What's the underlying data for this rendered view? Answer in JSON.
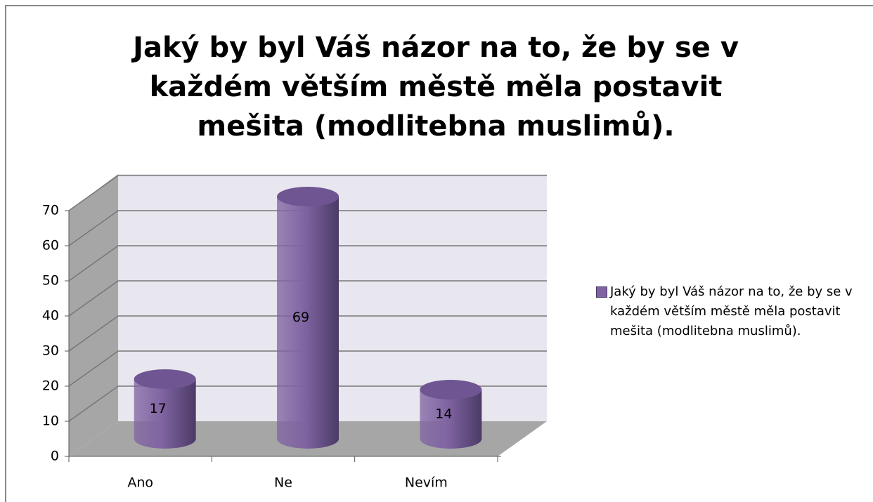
{
  "chart_data": {
    "type": "bar3d",
    "title": "Jaký by byl Váš názor na to, že by se v každém větším městě měla postavit mešita (modlitebna muslimů).",
    "categories": [
      "Ano",
      "Ne",
      "Nevím"
    ],
    "series": [
      {
        "name": "Jaký by byl Váš názor na to, že by se v každém větším městě měla postavit mešita (modlitebna muslimů).",
        "color": "#8064a2",
        "values": [
          17,
          69,
          14
        ]
      }
    ],
    "ylim": [
      0,
      70
    ],
    "yticks": [
      0,
      10,
      20,
      30,
      40,
      50,
      60,
      70
    ],
    "grid": true,
    "legend": "right"
  }
}
